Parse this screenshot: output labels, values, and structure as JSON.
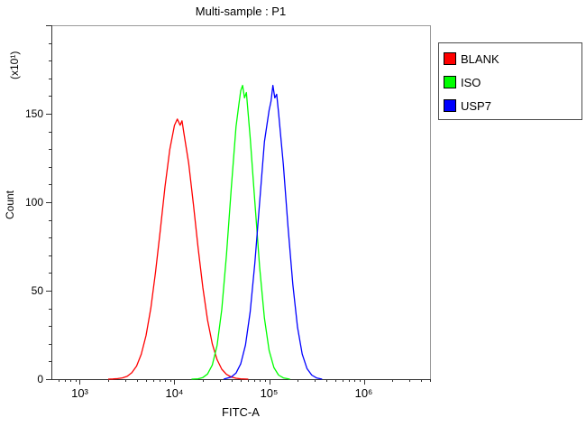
{
  "window": {
    "background": "#ffffff"
  },
  "chart_data": {
    "type": "line",
    "chart_style": "flow-cytometry-histogram",
    "title": "Multi-sample : P1",
    "xlabel": "FITC-A",
    "ylabel": "Count",
    "y_axis_multiplier": "(x10¹)",
    "x_scale": "log10",
    "xlog_range": [
      2.7,
      6.7
    ],
    "ylim": [
      0,
      200
    ],
    "grid": false,
    "legend_position": "outside-top-right",
    "xticks": [
      {
        "log": 3,
        "label": "10³"
      },
      {
        "log": 4,
        "label": "10⁴"
      },
      {
        "log": 5,
        "label": "10⁵"
      },
      {
        "log": 6,
        "label": "10⁶"
      }
    ],
    "yticks": [
      {
        "value": 0,
        "label": "0"
      },
      {
        "value": 50,
        "label": "50"
      },
      {
        "value": 100,
        "label": "100"
      },
      {
        "value": 150,
        "label": "150"
      }
    ],
    "y_minor_step": 10,
    "series": [
      {
        "name": "BLANK",
        "color": "#ff0000",
        "peak": {
          "x": 11000,
          "count": 147
        },
        "points": [
          [
            3.3,
            0
          ],
          [
            3.35,
            0.1
          ],
          [
            3.4,
            0.3
          ],
          [
            3.45,
            0.7
          ],
          [
            3.5,
            1.6
          ],
          [
            3.55,
            3.6
          ],
          [
            3.6,
            7.4
          ],
          [
            3.65,
            14.1
          ],
          [
            3.7,
            24.7
          ],
          [
            3.75,
            40.1
          ],
          [
            3.8,
            60.4
          ],
          [
            3.85,
            84.2
          ],
          [
            3.9,
            108.6
          ],
          [
            3.95,
            129.7
          ],
          [
            4.0,
            143.4
          ],
          [
            4.03,
            147.0
          ],
          [
            4.06,
            143.5
          ],
          [
            4.08,
            146.0
          ],
          [
            4.1,
            139.0
          ],
          [
            4.15,
            122.0
          ],
          [
            4.2,
            99.0
          ],
          [
            4.25,
            74.4
          ],
          [
            4.3,
            51.8
          ],
          [
            4.35,
            33.4
          ],
          [
            4.4,
            19.9
          ],
          [
            4.45,
            11.0
          ],
          [
            4.5,
            5.6
          ],
          [
            4.55,
            2.7
          ],
          [
            4.6,
            1.2
          ],
          [
            4.65,
            0.5
          ],
          [
            4.7,
            0.2
          ],
          [
            4.78,
            0
          ]
        ]
      },
      {
        "name": "ISO",
        "color": "#00ff00",
        "peak": {
          "x": 52000,
          "count": 166
        },
        "points": [
          [
            4.18,
            0
          ],
          [
            4.25,
            0.2
          ],
          [
            4.3,
            0.9
          ],
          [
            4.35,
            2.9
          ],
          [
            4.4,
            8.0
          ],
          [
            4.45,
            19.1
          ],
          [
            4.5,
            39.4
          ],
          [
            4.55,
            70.2
          ],
          [
            4.6,
            107.7
          ],
          [
            4.65,
            142.7
          ],
          [
            4.68,
            155.0
          ],
          [
            4.7,
            163.0
          ],
          [
            4.72,
            166.0
          ],
          [
            4.74,
            159.0
          ],
          [
            4.76,
            162.0
          ],
          [
            4.8,
            136.6
          ],
          [
            4.85,
            100.1
          ],
          [
            4.9,
            63.2
          ],
          [
            4.95,
            34.5
          ],
          [
            5.0,
            16.2
          ],
          [
            5.05,
            6.6
          ],
          [
            5.1,
            2.3
          ],
          [
            5.15,
            0.7
          ],
          [
            5.22,
            0
          ]
        ]
      },
      {
        "name": "USP7",
        "color": "#0000ff",
        "peak": {
          "x": 110000,
          "count": 166
        },
        "points": [
          [
            4.52,
            0
          ],
          [
            4.6,
            1.2
          ],
          [
            4.65,
            3.4
          ],
          [
            4.7,
            8.6
          ],
          [
            4.75,
            19.3
          ],
          [
            4.8,
            38.0
          ],
          [
            4.85,
            65.7
          ],
          [
            4.9,
            100.0
          ],
          [
            4.95,
            134.2
          ],
          [
            5.0,
            152.0
          ],
          [
            5.02,
            157.0
          ],
          [
            5.04,
            166.0
          ],
          [
            5.06,
            159.0
          ],
          [
            5.08,
            161.0
          ],
          [
            5.1,
            150.5
          ],
          [
            5.15,
            121.2
          ],
          [
            5.2,
            85.9
          ],
          [
            5.25,
            53.6
          ],
          [
            5.3,
            29.4
          ],
          [
            5.35,
            14.2
          ],
          [
            5.4,
            6.0
          ],
          [
            5.45,
            2.3
          ],
          [
            5.5,
            0.7
          ],
          [
            5.56,
            0
          ]
        ]
      }
    ]
  },
  "legend": {
    "items": [
      {
        "label": "BLANK",
        "color": "#ff0000"
      },
      {
        "label": "ISO",
        "color": "#00ff00"
      },
      {
        "label": "USP7",
        "color": "#0000ff"
      }
    ]
  }
}
